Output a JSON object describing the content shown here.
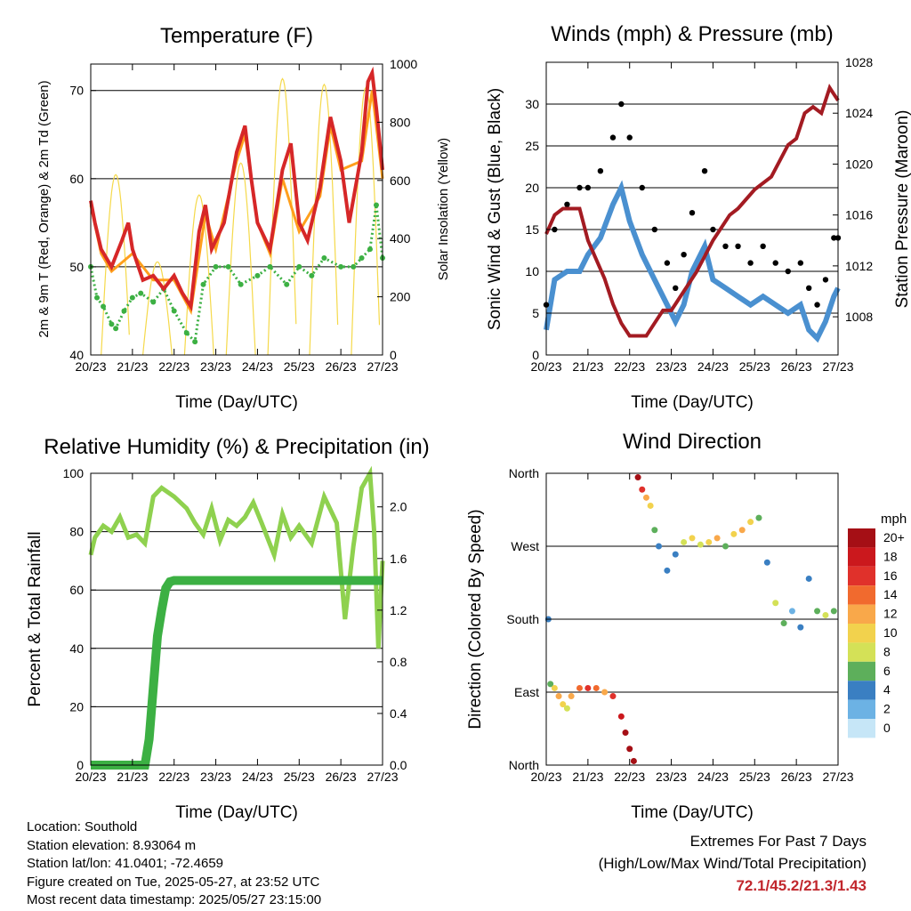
{
  "colors": {
    "temp_2m": "#d62728",
    "temp_9m": "#ff9f1c",
    "dewpoint": "#3cb043",
    "solar": "#f5d94a",
    "wind": "#4a90d0",
    "gust": "#000000",
    "pressure": "#a31b22",
    "rh": "#8fd14f",
    "precip": "#3cb043"
  },
  "chart_data": [
    {
      "type": "line",
      "title": "Temperature (F)",
      "xlabel": "Time (Day/UTC)",
      "ylabel": "2m & 9m T (Red, Orange) & 2m Td (Green)",
      "y2label": "Solar Insolation (Yellow)",
      "x_ticks": [
        "20/23",
        "21/23",
        "22/23",
        "23/23",
        "24/23",
        "25/23",
        "26/23",
        "27/23"
      ],
      "ylim": [
        40,
        73
      ],
      "y_ticks": [
        40,
        50,
        60,
        70
      ],
      "y2lim": [
        0,
        1000
      ],
      "y2_ticks": [
        0,
        200,
        400,
        600,
        800,
        1000
      ],
      "grid_y": [
        50,
        60,
        70
      ],
      "series": [
        {
          "name": "2m T",
          "color_key": "temp_2m",
          "axis": "left",
          "x": [
            0,
            0.1,
            0.25,
            0.5,
            0.75,
            0.9,
            1.0,
            1.25,
            1.5,
            1.75,
            2.0,
            2.2,
            2.4,
            2.6,
            2.75,
            2.9,
            3.2,
            3.5,
            3.7,
            3.85,
            4.0,
            4.3,
            4.6,
            4.8,
            5.0,
            5.2,
            5.5,
            5.75,
            6.0,
            6.2,
            6.5,
            6.65,
            6.75,
            6.85,
            7.0
          ],
          "y": [
            57.5,
            55,
            52,
            50,
            53,
            55,
            52,
            48.5,
            49,
            47.5,
            49,
            47,
            45.5,
            54,
            57,
            52,
            55,
            63,
            66,
            60,
            55,
            52,
            61,
            64,
            55,
            53,
            59,
            67,
            62,
            55,
            63,
            71,
            72,
            68,
            61
          ]
        },
        {
          "name": "9m T",
          "color_key": "temp_9m",
          "axis": "left",
          "x": [
            0,
            0.25,
            0.5,
            1.0,
            1.5,
            2.0,
            2.4,
            2.75,
            3.0,
            3.5,
            3.7,
            4.0,
            4.3,
            4.6,
            5.0,
            5.5,
            5.75,
            6.0,
            6.5,
            6.75,
            7.0
          ],
          "y": [
            57,
            51.5,
            49.5,
            51.5,
            48.5,
            48.5,
            45,
            56,
            52,
            62,
            65,
            55,
            51.5,
            60,
            54,
            58,
            66,
            61,
            62,
            70,
            60
          ]
        },
        {
          "name": "2m Td",
          "color_key": "dewpoint",
          "axis": "left",
          "x": [
            0,
            0.15,
            0.3,
            0.5,
            0.6,
            0.8,
            1.0,
            1.2,
            1.5,
            1.75,
            2.0,
            2.3,
            2.5,
            2.7,
            3.0,
            3.3,
            3.6,
            4.0,
            4.3,
            4.7,
            5.0,
            5.3,
            5.6,
            6.0,
            6.3,
            6.5,
            6.7,
            6.85,
            7.0
          ],
          "y": [
            50,
            46.5,
            45.5,
            43.5,
            43,
            45,
            46.5,
            47,
            46,
            47.5,
            45,
            42.5,
            41.5,
            48,
            50,
            50,
            48,
            49,
            50,
            48,
            50,
            49,
            51,
            50,
            50,
            51,
            52,
            57,
            51
          ]
        },
        {
          "name": "Solar Insolation",
          "color_key": "solar",
          "axis": "right",
          "day_peaks": [
            620,
            320,
            550,
            660,
            950,
            930,
            920,
            850
          ],
          "peak_offsets": [
            0.6,
            1.6,
            2.6,
            3.6,
            4.6,
            5.6,
            6.6,
            7.6
          ]
        }
      ]
    },
    {
      "type": "line",
      "title": "Winds (mph) & Pressure (mb)",
      "xlabel": "Time (Day/UTC)",
      "ylabel": "Sonic Wind & Gust (Blue, Black)",
      "y2label": "Station Pressure (Maroon)",
      "x_ticks": [
        "20/23",
        "21/23",
        "22/23",
        "23/23",
        "24/23",
        "25/23",
        "26/23",
        "27/23"
      ],
      "ylim": [
        0,
        35
      ],
      "y_ticks": [
        0,
        5,
        10,
        15,
        20,
        25,
        30
      ],
      "y2lim": [
        1005,
        1028
      ],
      "y2_ticks": [
        1008,
        1012,
        1016,
        1020,
        1024,
        1028
      ],
      "grid_y": [
        5,
        10,
        15,
        20,
        25,
        30
      ],
      "series": [
        {
          "name": "Wind",
          "color_key": "wind",
          "axis": "left",
          "x": [
            0,
            0.2,
            0.5,
            0.8,
            1.0,
            1.3,
            1.6,
            1.8,
            2.0,
            2.3,
            2.6,
            2.9,
            3.1,
            3.3,
            3.5,
            3.8,
            4.0,
            4.3,
            4.6,
            4.9,
            5.2,
            5.5,
            5.8,
            6.1,
            6.3,
            6.5,
            6.7,
            6.9,
            7.0
          ],
          "y": [
            3,
            9,
            10,
            10,
            12,
            14,
            18,
            20,
            16,
            12,
            9,
            6,
            4,
            6,
            10,
            13,
            9,
            8,
            7,
            6,
            7,
            6,
            5,
            6,
            3,
            2,
            4,
            7,
            8
          ]
        },
        {
          "name": "Gust",
          "color_key": "gust",
          "axis": "left",
          "x": [
            0,
            0.2,
            0.5,
            0.8,
            1.0,
            1.3,
            1.6,
            1.8,
            2.0,
            2.3,
            2.6,
            2.9,
            3.1,
            3.3,
            3.5,
            3.8,
            4.0,
            4.3,
            4.6,
            4.9,
            5.2,
            5.5,
            5.8,
            6.1,
            6.3,
            6.5,
            6.7,
            6.9,
            7.0
          ],
          "y": [
            6,
            15,
            18,
            20,
            20,
            22,
            26,
            30,
            26,
            20,
            15,
            11,
            8,
            12,
            17,
            22,
            15,
            13,
            13,
            11,
            13,
            11,
            10,
            11,
            8,
            6,
            9,
            14,
            14
          ]
        },
        {
          "name": "Pressure",
          "color_key": "pressure",
          "axis": "right",
          "x": [
            0,
            0.2,
            0.4,
            0.8,
            1.0,
            1.4,
            1.6,
            1.8,
            2.0,
            2.2,
            2.4,
            2.6,
            2.8,
            3.0,
            3.3,
            3.6,
            4.0,
            4.4,
            4.6,
            5.0,
            5.4,
            5.8,
            6.0,
            6.2,
            6.4,
            6.6,
            6.8,
            6.9,
            7.0
          ],
          "y": [
            1014.5,
            1016,
            1016.5,
            1016.5,
            1014,
            1011,
            1009,
            1007.5,
            1006.5,
            1006.5,
            1006.5,
            1007.5,
            1008.5,
            1008.5,
            1010,
            1011.5,
            1014,
            1016,
            1016.5,
            1018,
            1019,
            1021.5,
            1022,
            1024,
            1024.5,
            1024,
            1026,
            1025.5,
            1025
          ]
        }
      ]
    },
    {
      "type": "line",
      "title": "Relative Humidity (%) & Precipitation (in)",
      "xlabel": "Time (Day/UTC)",
      "ylabel": "Percent & Total Rainfall",
      "x_ticks": [
        "20/23",
        "21/23",
        "22/23",
        "23/23",
        "24/23",
        "25/23",
        "26/23",
        "27/23"
      ],
      "ylim": [
        0,
        100
      ],
      "y_ticks": [
        0,
        20,
        40,
        60,
        80,
        100
      ],
      "y2lim": [
        0,
        2.26
      ],
      "y2_ticks": [
        0.0,
        0.4,
        0.8,
        1.2,
        1.6,
        2.0
      ],
      "grid_y": [
        20,
        40,
        60,
        80
      ],
      "series": [
        {
          "name": "Relative Humidity",
          "color_key": "rh",
          "axis": "left",
          "x": [
            0,
            0.1,
            0.3,
            0.5,
            0.7,
            0.9,
            1.1,
            1.3,
            1.5,
            1.7,
            2.0,
            2.3,
            2.5,
            2.7,
            2.9,
            3.1,
            3.3,
            3.5,
            3.7,
            3.9,
            4.1,
            4.4,
            4.6,
            4.8,
            5.0,
            5.3,
            5.6,
            5.9,
            6.1,
            6.3,
            6.5,
            6.7,
            6.8,
            6.9,
            7.0
          ],
          "y": [
            72,
            78,
            82,
            80,
            85,
            78,
            79,
            76,
            92,
            95,
            92,
            88,
            83,
            79,
            88,
            77,
            84,
            82,
            85,
            90,
            83,
            72,
            86,
            78,
            82,
            76,
            92,
            83,
            50,
            75,
            95,
            100,
            80,
            40,
            70
          ]
        },
        {
          "name": "Total Precipitation",
          "color_key": "precip",
          "axis": "right",
          "x": [
            0,
            1.3,
            1.4,
            1.5,
            1.6,
            1.7,
            1.8,
            1.9,
            2.0,
            7.0
          ],
          "y": [
            0,
            0,
            0.2,
            0.6,
            1.0,
            1.2,
            1.37,
            1.42,
            1.43,
            1.43
          ]
        }
      ]
    },
    {
      "type": "scatter",
      "title": "Wind Direction",
      "xlabel": "Time (Day/UTC)",
      "ylabel": "Direction (Colored By Speed)",
      "x_ticks": [
        "20/23",
        "21/23",
        "22/23",
        "23/23",
        "24/23",
        "25/23",
        "26/23",
        "27/23"
      ],
      "y_ticks": [
        "North",
        "East",
        "South",
        "West",
        "North"
      ],
      "ylim": [
        0,
        360
      ],
      "grid_y": [
        90,
        180,
        270
      ],
      "legend_title": "mph",
      "legend_labels": [
        "20+",
        "18",
        "16",
        "14",
        "12",
        "10",
        "8",
        "6",
        "4",
        "2",
        "0"
      ],
      "legend_colors": [
        "#a50f15",
        "#cb181d",
        "#e0312b",
        "#f16a2e",
        "#f9a84a",
        "#f2d24d",
        "#d4e157",
        "#5daf5b",
        "#3a7fc2",
        "#6cb2e4",
        "#c6e6f7"
      ],
      "series": [
        {
          "name": "Direction",
          "axis": "left",
          "x": [
            0.05,
            0.1,
            0.2,
            0.3,
            0.4,
            0.5,
            0.6,
            0.8,
            1.0,
            1.2,
            1.4,
            1.6,
            1.8,
            1.9,
            2.0,
            2.1,
            2.2,
            2.3,
            2.4,
            2.5,
            2.6,
            2.7,
            2.9,
            3.1,
            3.3,
            3.5,
            3.7,
            3.9,
            4.1,
            4.3,
            4.5,
            4.7,
            4.9,
            5.1,
            5.3,
            5.5,
            5.7,
            5.9,
            6.1,
            6.3,
            6.5,
            6.7,
            6.9
          ],
          "y": [
            180,
            100,
            95,
            85,
            75,
            70,
            85,
            95,
            95,
            95,
            90,
            85,
            60,
            40,
            20,
            5,
            355,
            340,
            330,
            320,
            290,
            270,
            240,
            260,
            275,
            280,
            272,
            275,
            280,
            270,
            285,
            290,
            300,
            305,
            250,
            200,
            175,
            190,
            170,
            230,
            190,
            185,
            190
          ],
          "speed": [
            3,
            6,
            9,
            12,
            10,
            8,
            12,
            14,
            16,
            14,
            12,
            16,
            18,
            20,
            20,
            20,
            20,
            16,
            12,
            10,
            6,
            4,
            3,
            4,
            8,
            10,
            8,
            10,
            12,
            6,
            10,
            12,
            10,
            6,
            4,
            8,
            6,
            2,
            3,
            4,
            6,
            8,
            6
          ]
        }
      ]
    }
  ],
  "info": {
    "location": "Location: Southold",
    "elevation": "Station elevation: 8.93064 m",
    "latlon": "Station lat/lon: 41.0401; -72.4659",
    "created": "Figure created on Tue, 2025-05-27, at 23:52 UTC",
    "recent": "Most recent data timestamp: 2025/05/27 23:15:00"
  },
  "extremes": {
    "title": "Extremes For Past 7 Days",
    "subtitle": "(High/Low/Max Wind/Total Precipitation)",
    "values": "72.1/45.2/21.3/1.43"
  }
}
